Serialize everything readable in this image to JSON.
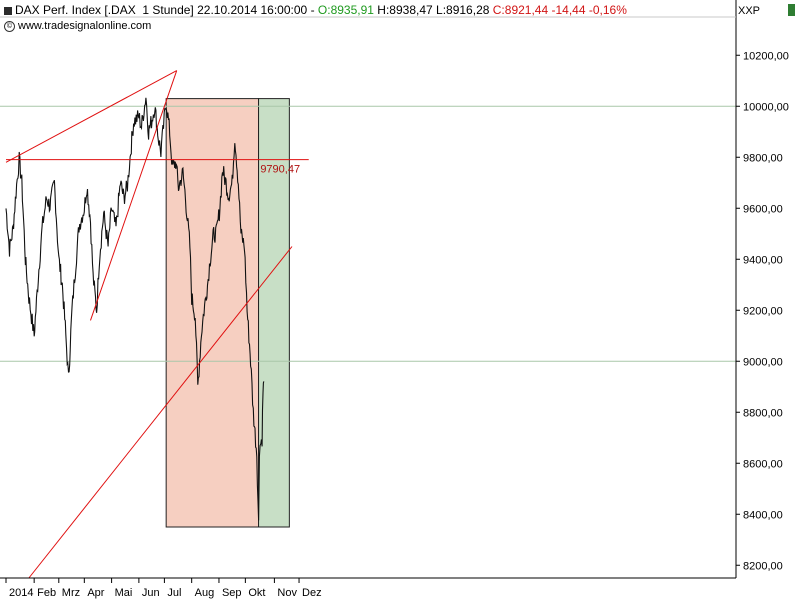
{
  "header": {
    "instrument": "DAX Perf. Index [.DAX",
    "interval": "1 Stunde]",
    "datetime": "22.10.2014 16:00:00",
    "sep": "-",
    "open": "O:8935,91",
    "high": "H:8938,47",
    "low": "L:8916,28",
    "close": "C:8921,44",
    "change": "-14,44",
    "change_pct": "-0,16%",
    "source": "www.tradesignalonline.com",
    "exchange": "XXP"
  },
  "colors": {
    "up": "#1f9a1f",
    "down": "#d11414",
    "trend": "#e01010",
    "red_zone": "#f6cfc1",
    "green_zone": "#c8dfc6",
    "gridline": "#a9c7a9"
  },
  "chart_data": {
    "type": "line",
    "title": "DAX Perf. Index [.DAX 1 Stunde]",
    "ylim": [
      8150,
      10350
    ],
    "y_ticks": [
      "8200,00",
      "8400,00",
      "8600,00",
      "8800,00",
      "9000,00",
      "9200,00",
      "9400,00",
      "9600,00",
      "9800,00",
      "10000,00",
      "10200,00"
    ],
    "y_tick_values": [
      8200,
      8400,
      8600,
      8800,
      9000,
      9200,
      9400,
      9600,
      9800,
      10000,
      10200
    ],
    "x_ticks": [
      "2014",
      "Feb",
      "Mrz",
      "Apr",
      "Mai",
      "Jun",
      "Jul",
      "Aug",
      "Sep",
      "Okt",
      "Nov",
      "Dez"
    ],
    "x_tick_dates": [
      "2014-01-02",
      "2014-02-03",
      "2014-03-03",
      "2014-04-01",
      "2014-05-02",
      "2014-06-02",
      "2014-07-01",
      "2014-08-01",
      "2014-09-01",
      "2014-10-01",
      "2014-11-03",
      "2014-12-01"
    ],
    "series": [
      {
        "values": [
          {
            "x": "2014-01-02",
            "y": 9600
          },
          {
            "x": "2014-01-06",
            "y": 9440
          },
          {
            "x": "2014-01-10",
            "y": 9520
          },
          {
            "x": "2014-01-14",
            "y": 9690
          },
          {
            "x": "2014-01-17",
            "y": 9790
          },
          {
            "x": "2014-01-20",
            "y": 9700
          },
          {
            "x": "2014-01-24",
            "y": 9400
          },
          {
            "x": "2014-01-28",
            "y": 9250
          },
          {
            "x": "2014-02-03",
            "y": 9100
          },
          {
            "x": "2014-02-07",
            "y": 9300
          },
          {
            "x": "2014-02-12",
            "y": 9520
          },
          {
            "x": "2014-02-17",
            "y": 9640
          },
          {
            "x": "2014-02-21",
            "y": 9610
          },
          {
            "x": "2014-02-26",
            "y": 9700
          },
          {
            "x": "2014-03-03",
            "y": 9400
          },
          {
            "x": "2014-03-07",
            "y": 9300
          },
          {
            "x": "2014-03-11",
            "y": 9100
          },
          {
            "x": "2014-03-14",
            "y": 8930
          },
          {
            "x": "2014-03-18",
            "y": 9200
          },
          {
            "x": "2014-03-21",
            "y": 9330
          },
          {
            "x": "2014-03-26",
            "y": 9530
          },
          {
            "x": "2014-04-01",
            "y": 9600
          },
          {
            "x": "2014-04-04",
            "y": 9690
          },
          {
            "x": "2014-04-08",
            "y": 9550
          },
          {
            "x": "2014-04-11",
            "y": 9330
          },
          {
            "x": "2014-04-15",
            "y": 9200
          },
          {
            "x": "2014-04-18",
            "y": 9400
          },
          {
            "x": "2014-04-23",
            "y": 9580
          },
          {
            "x": "2014-04-28",
            "y": 9450
          },
          {
            "x": "2014-05-02",
            "y": 9600
          },
          {
            "x": "2014-05-07",
            "y": 9520
          },
          {
            "x": "2014-05-12",
            "y": 9700
          },
          {
            "x": "2014-05-16",
            "y": 9640
          },
          {
            "x": "2014-05-20",
            "y": 9690
          },
          {
            "x": "2014-05-23",
            "y": 9800
          },
          {
            "x": "2014-05-27",
            "y": 9940
          },
          {
            "x": "2014-06-02",
            "y": 9960
          },
          {
            "x": "2014-06-05",
            "y": 9920
          },
          {
            "x": "2014-06-10",
            "y": 10040
          },
          {
            "x": "2014-06-13",
            "y": 9900
          },
          {
            "x": "2014-06-17",
            "y": 9950
          },
          {
            "x": "2014-06-20",
            "y": 10000
          },
          {
            "x": "2014-06-24",
            "y": 9880
          },
          {
            "x": "2014-06-27",
            "y": 9820
          },
          {
            "x": "2014-07-03",
            "y": 10020
          },
          {
            "x": "2014-07-07",
            "y": 9900
          },
          {
            "x": "2014-07-10",
            "y": 9760
          },
          {
            "x": "2014-07-14",
            "y": 9780
          },
          {
            "x": "2014-07-17",
            "y": 9680
          },
          {
            "x": "2014-07-22",
            "y": 9740
          },
          {
            "x": "2014-07-25",
            "y": 9640
          },
          {
            "x": "2014-07-30",
            "y": 9450
          },
          {
            "x": "2014-08-01",
            "y": 9250
          },
          {
            "x": "2014-08-05",
            "y": 9180
          },
          {
            "x": "2014-08-08",
            "y": 8900
          },
          {
            "x": "2014-08-12",
            "y": 9110
          },
          {
            "x": "2014-08-15",
            "y": 9200
          },
          {
            "x": "2014-08-19",
            "y": 9300
          },
          {
            "x": "2014-08-22",
            "y": 9400
          },
          {
            "x": "2014-08-26",
            "y": 9500
          },
          {
            "x": "2014-08-29",
            "y": 9500
          },
          {
            "x": "2014-09-02",
            "y": 9600
          },
          {
            "x": "2014-09-05",
            "y": 9750
          },
          {
            "x": "2014-09-09",
            "y": 9700
          },
          {
            "x": "2014-09-12",
            "y": 9650
          },
          {
            "x": "2014-09-16",
            "y": 9700
          },
          {
            "x": "2014-09-19",
            "y": 9880
          },
          {
            "x": "2014-09-23",
            "y": 9700
          },
          {
            "x": "2014-09-26",
            "y": 9500
          },
          {
            "x": "2014-09-30",
            "y": 9450
          },
          {
            "x": "2014-10-03",
            "y": 9200
          },
          {
            "x": "2014-10-07",
            "y": 9000
          },
          {
            "x": "2014-10-10",
            "y": 8800
          },
          {
            "x": "2014-10-14",
            "y": 8640
          },
          {
            "x": "2014-10-16",
            "y": 8360
          },
          {
            "x": "2014-10-17",
            "y": 8660
          },
          {
            "x": "2014-10-20",
            "y": 8700
          },
          {
            "x": "2014-10-21",
            "y": 8880
          },
          {
            "x": "2014-10-22",
            "y": 8921
          }
        ]
      }
    ],
    "trendlines": [
      {
        "from": {
          "x": "2014-01-02",
          "y": 9780
        },
        "to": {
          "x": "2014-07-15",
          "y": 10140
        }
      },
      {
        "from": {
          "x": "2014-04-08",
          "y": 9160
        },
        "to": {
          "x": "2014-07-15",
          "y": 10140
        }
      },
      {
        "from": {
          "x": "2014-01-28",
          "y": 8150
        },
        "to": {
          "x": "2014-11-23",
          "y": 9450
        }
      }
    ],
    "horizontal_line": {
      "y": 9790.47,
      "label": "9790,47",
      "x_from": "2014-01-02",
      "x_to": "2014-12-12"
    },
    "zones": [
      {
        "x_from": "2014-07-03",
        "x_to": "2014-10-16",
        "y_from": 8350,
        "y_to": 10030,
        "color": "#f6cfc1"
      },
      {
        "x_from": "2014-10-16",
        "x_to": "2014-11-20",
        "y_from": 8350,
        "y_to": 10030,
        "color": "#c8dfc6"
      }
    ],
    "reference_lines": [
      10000,
      9000
    ]
  }
}
